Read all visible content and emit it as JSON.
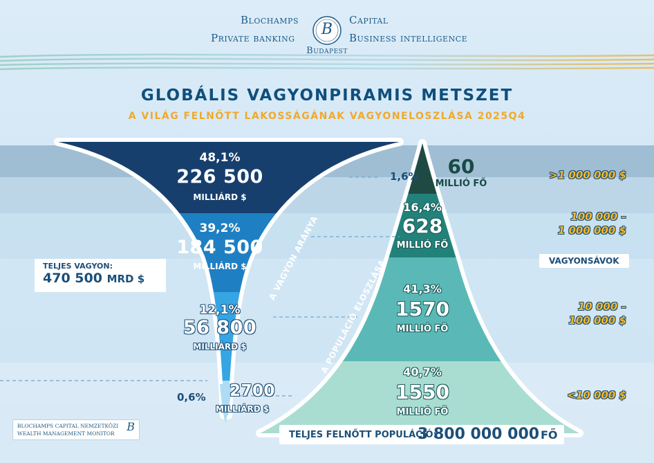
{
  "header": {
    "brand_left_top": "Blochamps",
    "brand_right_top": "Capital",
    "brand_left_bottom": "Private banking",
    "brand_right_bottom": "Business intelligence",
    "brand_city": "Budapest",
    "logo_letter": "B",
    "title": "GLOBÁLIS VAGYONPIRAMIS METSZET",
    "subtitle": "A VILÁG FELNŐTT LAKOSSÁGÁNAK VAGYONELOSZLÁSA 2025Q4"
  },
  "colors": {
    "wealth_tiers": [
      "#173f6d",
      "#1f7fc3",
      "#36a5e3",
      "#aedcf4"
    ],
    "population_tiers": [
      "#1f4a44",
      "#22827a",
      "#5ab9b7",
      "#a9ddd2"
    ],
    "accent": "#f0a92a",
    "text_dark": "#1b4f78"
  },
  "chart_data": {
    "type": "bar",
    "categories": [
      ">1 000 000 $",
      "100 000 – 1 000 000 $",
      "10 000 – 100 000 $",
      "<10 000 $"
    ],
    "series": [
      {
        "name": "A VAGYON ARÁNYA",
        "values": [
          48.1,
          39.2,
          12.1,
          0.6
        ],
        "amounts": [
          226500,
          184500,
          56800,
          2700
        ],
        "value_labels": [
          "226 500",
          "184 500",
          "56 800",
          "2700"
        ],
        "pct_labels": [
          "48,1%",
          "39,2%",
          "12,1%",
          "0,6%"
        ],
        "unit": "MILLIÁRD $"
      },
      {
        "name": "A POPULÁCIÓ ELOSZLÁSA",
        "values": [
          1.6,
          16.4,
          41.3,
          40.7
        ],
        "amounts": [
          60,
          628,
          1570,
          1550
        ],
        "value_labels": [
          "60",
          "628",
          "1570",
          "1550"
        ],
        "pct_labels": [
          "1,6%",
          "16,4%",
          "41,3%",
          "40,7%"
        ],
        "unit": "MILLIÓ FŐ"
      }
    ]
  },
  "labels": {
    "wealth_axis": "A VAGYON ARÁNYA",
    "population_axis": "A POPULÁCIÓ ELOSZLÁSA",
    "wealth_bands_badge": "VAGYONSÁVOK",
    "band_1": ">1 000 000 $",
    "band_2_line1": "100 000 –",
    "band_2_line2": "1 000 000 $",
    "band_3_line1": "10 000 –",
    "band_3_line2": "100 000 $",
    "band_4": "<10 000 $",
    "total_wealth_label": "TELJES VAGYON:",
    "total_wealth_value": "470 500",
    "total_wealth_unit": "MRD $",
    "total_population_label": "TELJES FELNŐTT POPULÁCIÓ:",
    "total_population_value": "3 800 000 000",
    "total_population_unit": "FŐ",
    "monitor_line1": "BLOCHAMPS CAPITAL NEMZETKÖZI",
    "monitor_line2": "WEALTH MANAGEMENT MONITOR"
  }
}
